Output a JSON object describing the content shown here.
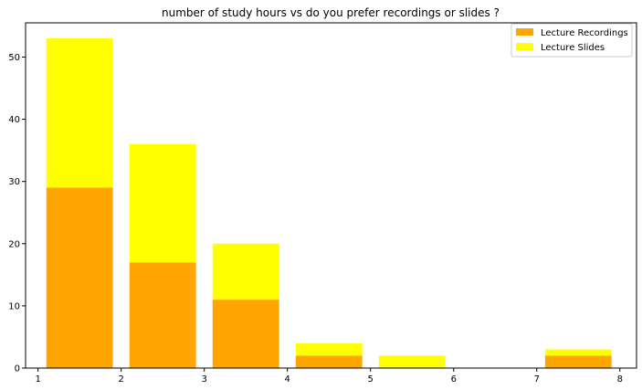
{
  "chart_data": {
    "type": "bar",
    "stacked": true,
    "title": "number of study hours vs do you prefer recordings or slides ?",
    "xlabel": "",
    "ylabel": "",
    "xlim": [
      0.85,
      8.2
    ],
    "ylim": [
      0,
      55.5
    ],
    "x_ticks": [
      1,
      2,
      3,
      4,
      5,
      6,
      7,
      8
    ],
    "y_ticks": [
      0,
      10,
      20,
      30,
      40,
      50
    ],
    "bar_width": 0.8,
    "bin_starts": [
      1.1,
      2.1,
      3.1,
      4.1,
      5.1,
      6.1,
      7.1
    ],
    "series": [
      {
        "name": "Lecture Recordings",
        "color": "#FFA500",
        "values": [
          29,
          17,
          11,
          2,
          0,
          0,
          2
        ]
      },
      {
        "name": "Lecture Slides",
        "color": "#FFFF00",
        "values": [
          24,
          19,
          9,
          2,
          2,
          0,
          1
        ]
      }
    ],
    "legend_position": "upper right",
    "grid": false
  }
}
